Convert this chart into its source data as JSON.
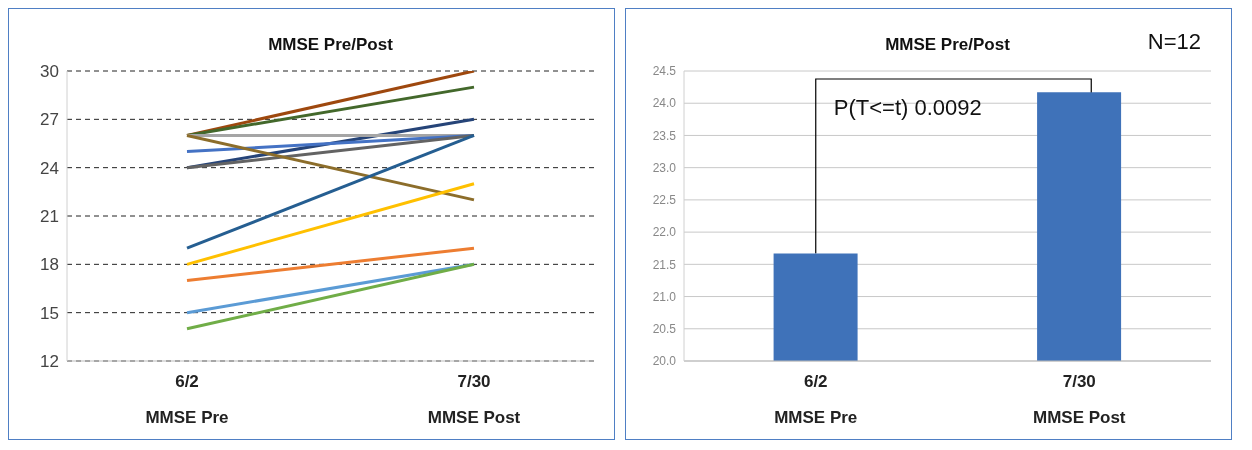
{
  "chart_data": [
    {
      "type": "line",
      "title": "MMSE Pre/Post",
      "categories": [
        "6/2\nMMSE Pre",
        "7/30\nMMSE Post"
      ],
      "ylim": [
        12,
        30
      ],
      "yticks": [
        12,
        15,
        18,
        21,
        24,
        27,
        30
      ],
      "grid": "y",
      "legend": false,
      "marker": "none",
      "line_style": "solid",
      "series": [
        {
          "color": "#9e480e",
          "values": [
            26,
            30
          ]
        },
        {
          "color": "#43682b",
          "values": [
            26,
            29
          ]
        },
        {
          "color": "#264478",
          "values": [
            24,
            27
          ]
        },
        {
          "color": "#a5a5a5",
          "values": [
            26,
            26
          ]
        },
        {
          "color": "#4472c4",
          "values": [
            25,
            26
          ]
        },
        {
          "color": "#636363",
          "values": [
            24,
            26
          ]
        },
        {
          "color": "#8c6d2a",
          "values": [
            26,
            22
          ]
        },
        {
          "color": "#255e91",
          "values": [
            19,
            26
          ]
        },
        {
          "color": "#ffc000",
          "values": [
            18,
            23
          ]
        },
        {
          "color": "#ed7d31",
          "values": [
            17,
            19
          ]
        },
        {
          "color": "#5b9bd5",
          "values": [
            15,
            18
          ]
        },
        {
          "color": "#70ad47",
          "values": [
            14,
            18
          ]
        }
      ]
    },
    {
      "type": "bar",
      "title": "MMSE Pre/Post",
      "categories": [
        "6/2\nMMSE Pre",
        "7/30\nMMSE Post"
      ],
      "values": [
        21.67,
        24.17
      ],
      "color": "#3f72b9",
      "ylim": [
        20,
        24.5
      ],
      "yticks": [
        {
          "value": 20,
          "label": "20.0"
        },
        {
          "value": 20.5,
          "label": "20.5"
        },
        {
          "value": 21,
          "label": "21.0"
        },
        {
          "value": 21.5,
          "label": "21.5"
        },
        {
          "value": 22,
          "label": "22.0"
        },
        {
          "value": 22.5,
          "label": "22.5"
        },
        {
          "value": 23,
          "label": "23.0"
        },
        {
          "value": 23.5,
          "label": "23.5"
        },
        {
          "value": 24,
          "label": "24.0"
        },
        {
          "value": 24.5,
          "label": "24.5"
        }
      ],
      "grid": "y",
      "legend": false,
      "annotations": [
        "P(T<=t) 0.0092",
        "N=12"
      ]
    }
  ]
}
